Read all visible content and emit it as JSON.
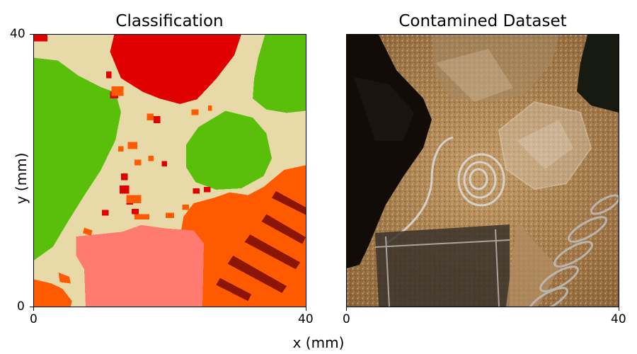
{
  "chart_data": [
    {
      "type": "heatmap",
      "title": "Classification",
      "xlabel": "x (mm)",
      "ylabel": "y (mm)",
      "xlim": [
        0,
        40
      ],
      "ylim": [
        0,
        40
      ],
      "x_ticks": [
        "0",
        "40"
      ],
      "y_ticks": [
        "0",
        "40"
      ],
      "classes": [
        {
          "color": "#e8d9a8"
        },
        {
          "color": "#5abf0a"
        },
        {
          "color": "#e00000"
        },
        {
          "color": "#ff5a00"
        },
        {
          "color": "#ff7a70"
        },
        {
          "color": "#8b1606"
        }
      ],
      "regions": [
        {
          "class": 2,
          "points": [
            [
              11.8,
              40
            ],
            [
              30.5,
              40
            ],
            [
              29.5,
              37
            ],
            [
              26.8,
              33.5
            ],
            [
              24,
              30.5
            ],
            [
              21.5,
              29.8
            ],
            [
              18.5,
              30.6
            ],
            [
              16,
              31.6
            ],
            [
              12.8,
              33.6
            ],
            [
              11.2,
              37.5
            ]
          ]
        },
        {
          "class": 1,
          "points": [
            [
              0,
              36.6
            ],
            [
              3.5,
              36.2
            ],
            [
              6.5,
              34
            ],
            [
              9.8,
              32.3
            ],
            [
              12,
              31.5
            ],
            [
              12.8,
              28.6
            ],
            [
              12,
              24.5
            ],
            [
              9.8,
              20
            ],
            [
              7.5,
              16.5
            ],
            [
              5,
              12.5
            ],
            [
              2.8,
              8.8
            ],
            [
              0,
              6.8
            ]
          ]
        },
        {
          "class": 1,
          "points": [
            [
              34,
              40
            ],
            [
              40,
              40
            ],
            [
              40,
              28.8
            ],
            [
              37.2,
              28.5
            ],
            [
              34.2,
              29
            ],
            [
              32.2,
              30.6
            ],
            [
              32.4,
              33.5
            ],
            [
              33,
              36.6
            ]
          ]
        },
        {
          "class": 1,
          "points": [
            [
              28.2,
              28.8
            ],
            [
              32.2,
              27.8
            ],
            [
              34.2,
              25.5
            ],
            [
              35,
              21.8
            ],
            [
              33.8,
              19.2
            ],
            [
              30.5,
              17.4
            ],
            [
              26.8,
              17.2
            ],
            [
              23.8,
              18.3
            ],
            [
              22.4,
              20.5
            ],
            [
              22.4,
              23.8
            ],
            [
              24.2,
              26.4
            ]
          ]
        },
        {
          "class": 3,
          "points": [
            [
              40,
              20.8
            ],
            [
              36.8,
              20.1
            ],
            [
              33.8,
              17.6
            ],
            [
              31.5,
              16.4
            ],
            [
              28.8,
              16.8
            ],
            [
              26.5,
              16
            ],
            [
              23.5,
              15.2
            ],
            [
              22,
              13.2
            ],
            [
              21.6,
              10.8
            ],
            [
              24.2,
              9
            ],
            [
              24.8,
              7
            ],
            [
              24.8,
              0
            ],
            [
              40,
              0
            ]
          ]
        },
        {
          "class": 4,
          "points": [
            [
              6.2,
              10.3
            ],
            [
              13,
              11
            ],
            [
              15.8,
              12
            ],
            [
              19.4,
              11.5
            ],
            [
              23.5,
              11.2
            ],
            [
              25,
              9.3
            ],
            [
              24.8,
              0
            ],
            [
              7.6,
              0
            ],
            [
              7.4,
              5.5
            ],
            [
              6.2,
              7.5
            ]
          ]
        },
        {
          "class": 5,
          "points": [
            [
              31,
              9.5
            ],
            [
              38.5,
              5.5
            ],
            [
              39.2,
              6.5
            ],
            [
              31.8,
              10.6
            ]
          ]
        },
        {
          "class": 5,
          "points": [
            [
              28.5,
              6.3
            ],
            [
              36.5,
              2
            ],
            [
              37.2,
              3
            ],
            [
              29.3,
              7.5
            ]
          ]
        },
        {
          "class": 5,
          "points": [
            [
              33.5,
              12.5
            ],
            [
              39.5,
              9.2
            ],
            [
              40,
              10.2
            ],
            [
              34.2,
              13.6
            ]
          ]
        },
        {
          "class": 5,
          "points": [
            [
              26.8,
              3.2
            ],
            [
              31.5,
              0.8
            ],
            [
              32,
              1.8
            ],
            [
              27.4,
              4.2
            ]
          ]
        },
        {
          "class": 5,
          "points": [
            [
              35,
              16
            ],
            [
              40,
              13.5
            ],
            [
              40,
              14.6
            ],
            [
              35.6,
              17
            ]
          ]
        },
        {
          "class": 3,
          "points": [
            [
              0,
              4
            ],
            [
              2.6,
              3.4
            ],
            [
              4.2,
              2.6
            ],
            [
              5.6,
              0.8
            ],
            [
              5.4,
              0
            ],
            [
              0,
              0
            ]
          ]
        },
        {
          "class": 3,
          "points": [
            [
              3.6,
              5
            ],
            [
              5.2,
              4.4
            ],
            [
              5.4,
              3.4
            ],
            [
              3.8,
              3.6
            ]
          ]
        },
        {
          "class": 3,
          "points": [
            [
              7.4,
              11.6
            ],
            [
              8.6,
              11.2
            ],
            [
              8.4,
              10.4
            ],
            [
              7.2,
              10.8
            ]
          ]
        },
        {
          "class": 2,
          "points": [
            [
              0,
              40
            ],
            [
              2,
              40
            ],
            [
              2,
              39
            ],
            [
              0,
              39
            ]
          ]
        },
        {
          "class": 2,
          "points": [
            [
              11.2,
              31.6
            ],
            [
              12.4,
              31.6
            ],
            [
              12.4,
              30.6
            ],
            [
              11.2,
              30.6
            ]
          ]
        },
        {
          "class": 2,
          "points": [
            [
              10.6,
              34.6
            ],
            [
              11.4,
              34.6
            ],
            [
              11.4,
              33.6
            ],
            [
              10.6,
              33.6
            ]
          ]
        },
        {
          "class": 2,
          "points": [
            [
              17.6,
              28
            ],
            [
              18.6,
              28
            ],
            [
              18.6,
              27
            ],
            [
              17.6,
              27
            ]
          ]
        },
        {
          "class": 2,
          "points": [
            [
              12.8,
              19.6
            ],
            [
              13.8,
              19.6
            ],
            [
              13.8,
              18.6
            ],
            [
              12.8,
              18.6
            ]
          ]
        },
        {
          "class": 2,
          "points": [
            [
              12.6,
              17.8
            ],
            [
              14,
              17.8
            ],
            [
              14,
              16.6
            ],
            [
              12.6,
              16.6
            ]
          ]
        },
        {
          "class": 2,
          "points": [
            [
              13.6,
              15.8
            ],
            [
              14.6,
              15.8
            ],
            [
              14.6,
              15
            ],
            [
              13.6,
              15
            ]
          ]
        },
        {
          "class": 2,
          "points": [
            [
              14.4,
              14.4
            ],
            [
              15.4,
              14.4
            ],
            [
              15.4,
              13.6
            ],
            [
              14.4,
              13.6
            ]
          ]
        },
        {
          "class": 2,
          "points": [
            [
              10,
              14.2
            ],
            [
              11,
              14.2
            ],
            [
              11,
              13.4
            ],
            [
              10,
              13.4
            ]
          ]
        },
        {
          "class": 2,
          "points": [
            [
              23.4,
              17.4
            ],
            [
              24.4,
              17.4
            ],
            [
              24.4,
              16.6
            ],
            [
              23.4,
              16.6
            ]
          ]
        },
        {
          "class": 2,
          "points": [
            [
              25,
              17.6
            ],
            [
              26,
              17.6
            ],
            [
              26,
              16.8
            ],
            [
              25,
              16.8
            ]
          ]
        },
        {
          "class": 2,
          "points": [
            [
              18.8,
              21.4
            ],
            [
              19.6,
              21.4
            ],
            [
              19.6,
              20.6
            ],
            [
              18.8,
              20.6
            ]
          ]
        },
        {
          "class": 3,
          "points": [
            [
              11.4,
              32.4
            ],
            [
              13.2,
              32.4
            ],
            [
              13.2,
              31
            ],
            [
              11.4,
              31
            ]
          ]
        },
        {
          "class": 3,
          "points": [
            [
              16.6,
              28.4
            ],
            [
              17.6,
              28.4
            ],
            [
              17.6,
              27.4
            ],
            [
              16.6,
              27.4
            ]
          ]
        },
        {
          "class": 3,
          "points": [
            [
              23.2,
              29
            ],
            [
              24.2,
              29
            ],
            [
              24.2,
              28.2
            ],
            [
              23.2,
              28.2
            ]
          ]
        },
        {
          "class": 3,
          "points": [
            [
              25.6,
              29.6
            ],
            [
              26.2,
              29.6
            ],
            [
              26.2,
              28.8
            ],
            [
              25.6,
              28.8
            ]
          ]
        },
        {
          "class": 3,
          "points": [
            [
              13.8,
              24.2
            ],
            [
              15.2,
              24.2
            ],
            [
              15.2,
              23.2
            ],
            [
              13.8,
              23.2
            ]
          ]
        },
        {
          "class": 3,
          "points": [
            [
              14.8,
              21.6
            ],
            [
              15.8,
              21.6
            ],
            [
              15.8,
              20.8
            ],
            [
              14.8,
              20.8
            ]
          ]
        },
        {
          "class": 3,
          "points": [
            [
              13.6,
              16.4
            ],
            [
              15.8,
              16.4
            ],
            [
              15.8,
              15.2
            ],
            [
              13.6,
              15.2
            ]
          ]
        },
        {
          "class": 3,
          "points": [
            [
              14.8,
              13.6
            ],
            [
              17,
              13.6
            ],
            [
              17,
              12.8
            ],
            [
              14.8,
              12.8
            ]
          ]
        },
        {
          "class": 3,
          "points": [
            [
              19.4,
              13.8
            ],
            [
              20.6,
              13.8
            ],
            [
              20.6,
              13
            ],
            [
              19.4,
              13
            ]
          ]
        },
        {
          "class": 3,
          "points": [
            [
              21.8,
              15
            ],
            [
              22.8,
              15
            ],
            [
              22.8,
              14.2
            ],
            [
              21.8,
              14.2
            ]
          ]
        },
        {
          "class": 3,
          "points": [
            [
              12.4,
              23.6
            ],
            [
              13.2,
              23.6
            ],
            [
              13.2,
              22.8
            ],
            [
              12.4,
              22.8
            ]
          ]
        },
        {
          "class": 3,
          "points": [
            [
              16.8,
              22.2
            ],
            [
              17.6,
              22.2
            ],
            [
              17.6,
              21.4
            ],
            [
              16.8,
              21.4
            ]
          ]
        }
      ]
    },
    {
      "type": "image",
      "title": "Contamined Dataset",
      "x_ticks": [
        "0",
        "40"
      ],
      "xlim": [
        0,
        40
      ]
    }
  ]
}
